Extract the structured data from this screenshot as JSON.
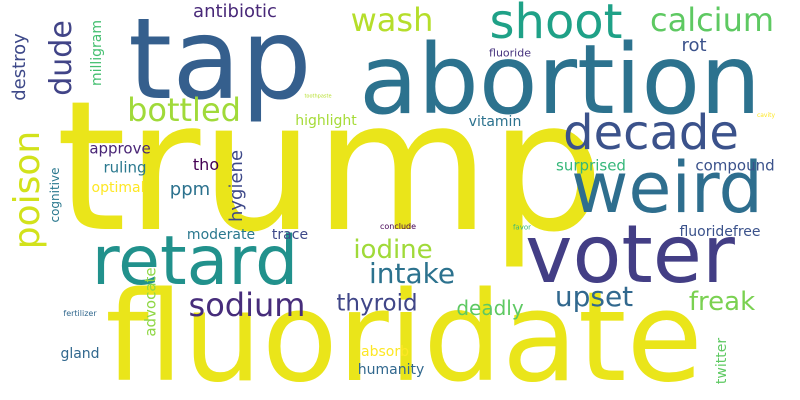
{
  "words": [
    {
      "text": "trump",
      "color": "#eae51a"
    },
    {
      "text": "fluoridate",
      "color": "#eae51a"
    },
    {
      "text": "tap",
      "color": "#355f8d"
    },
    {
      "text": "abortion",
      "color": "#2c728e"
    },
    {
      "text": "voter",
      "color": "#433e85"
    },
    {
      "text": "weird",
      "color": "#2e6e8e"
    },
    {
      "text": "retard",
      "color": "#21918c"
    },
    {
      "text": "decade",
      "color": "#3b528b"
    },
    {
      "text": "shoot",
      "color": "#1fa187"
    },
    {
      "text": "calcium",
      "color": "#5ec962"
    },
    {
      "text": "wash",
      "color": "#b5de2b"
    },
    {
      "text": "bottled",
      "color": "#a0da39"
    },
    {
      "text": "poison",
      "color": "#d2e21b"
    },
    {
      "text": "intake",
      "color": "#2c728e"
    },
    {
      "text": "iodine",
      "color": "#a0da39"
    },
    {
      "text": "sodium",
      "color": "#472d7b"
    },
    {
      "text": "thyroid",
      "color": "#404688"
    },
    {
      "text": "upset",
      "color": "#31688e"
    },
    {
      "text": "freak",
      "color": "#7ad151"
    },
    {
      "text": "deadly",
      "color": "#5ec962"
    },
    {
      "text": "dude",
      "color": "#414487"
    },
    {
      "text": "antibiotic",
      "color": "#482878"
    },
    {
      "text": "destroy",
      "color": "#3e4989"
    },
    {
      "text": "rot",
      "color": "#3b528b"
    },
    {
      "text": "fluoride",
      "color": "#46327e"
    },
    {
      "text": "milligram",
      "color": "#44bf70"
    },
    {
      "text": "hygiene",
      "color": "#3e4989"
    },
    {
      "text": "ppm",
      "color": "#2c728e"
    },
    {
      "text": "tho",
      "color": "#440154"
    },
    {
      "text": "ruling",
      "color": "#2a788e"
    },
    {
      "text": "approve",
      "color": "#482475"
    },
    {
      "text": "optimal",
      "color": "#fde725"
    },
    {
      "text": "cognitive",
      "color": "#2a788e"
    },
    {
      "text": "highlight",
      "color": "#a5db36"
    },
    {
      "text": "vitamin",
      "color": "#2c728e"
    },
    {
      "text": "surprised",
      "color": "#35b779"
    },
    {
      "text": "compound",
      "color": "#3b528b"
    },
    {
      "text": "fluoridefree",
      "color": "#3b528b"
    },
    {
      "text": "moderate",
      "color": "#2a788e"
    },
    {
      "text": "trace",
      "color": "#3e4989"
    },
    {
      "text": "advocate",
      "color": "#8fd744"
    },
    {
      "text": "gland",
      "color": "#31688e"
    },
    {
      "text": "absorb",
      "color": "#fde725"
    },
    {
      "text": "humanity",
      "color": "#31688e"
    },
    {
      "text": "twitter",
      "color": "#5ec962"
    },
    {
      "text": "toothpaste",
      "color": "#b5de2b"
    },
    {
      "text": "cavity",
      "color": "#fde725"
    },
    {
      "text": "conclude",
      "color": "#440154"
    },
    {
      "text": "favor",
      "color": "#35b779"
    },
    {
      "text": "fertilizer",
      "color": "#31688e"
    }
  ]
}
